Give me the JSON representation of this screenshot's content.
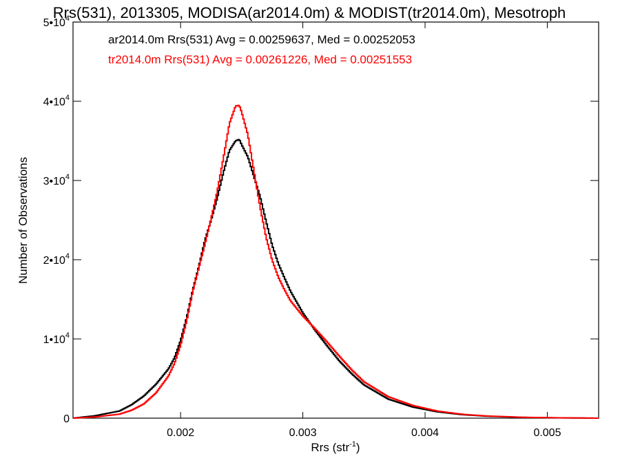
{
  "chart_data": {
    "type": "line",
    "title": "Rrs(531), 2013305, MODISA(ar2014.0m) & MODIST(tr2014.0m), Mesotroph",
    "xlabel": "Rrs (str",
    "xlabel_sup": "-1",
    "xlabel_end": ")",
    "ylabel": "Number of Observations",
    "xlim": [
      0.00112,
      0.00542
    ],
    "ylim": [
      0,
      50000
    ],
    "x_ticks": [
      {
        "value": 0.002,
        "label": "0.002"
      },
      {
        "value": 0.003,
        "label": "0.003"
      },
      {
        "value": 0.004,
        "label": "0.004"
      },
      {
        "value": 0.005,
        "label": "0.005"
      }
    ],
    "y_ticks": [
      {
        "value": 0,
        "mant": "0",
        "exp": ""
      },
      {
        "value": 10000,
        "mant": "1•10",
        "exp": "4"
      },
      {
        "value": 20000,
        "mant": "2•10",
        "exp": "4"
      },
      {
        "value": 30000,
        "mant": "3•10",
        "exp": "4"
      },
      {
        "value": 40000,
        "mant": "4•10",
        "exp": "4"
      },
      {
        "value": 50000,
        "mant": "5•10",
        "exp": "4"
      }
    ],
    "grid": false,
    "legend_position": "top-left",
    "series": [
      {
        "name": "ar2014.0m Rrs(531) Avg = 0.00259637, Med = 0.00252053",
        "color": "#000000",
        "x": [
          0.00112,
          0.0013,
          0.0015,
          0.0016,
          0.0017,
          0.0018,
          0.0019,
          0.00195,
          0.002,
          0.00205,
          0.0021,
          0.00215,
          0.0022,
          0.00225,
          0.0023,
          0.00235,
          0.0024,
          0.00245,
          0.00248,
          0.0025,
          0.00255,
          0.0026,
          0.00265,
          0.0027,
          0.00275,
          0.0028,
          0.00285,
          0.0029,
          0.003,
          0.0031,
          0.0032,
          0.0033,
          0.0034,
          0.0035,
          0.0037,
          0.0039,
          0.0041,
          0.0043,
          0.0045,
          0.0048,
          0.0051,
          0.00542
        ],
        "y": [
          0,
          300,
          900,
          1700,
          2800,
          4300,
          6200,
          7600,
          9800,
          12700,
          16200,
          19200,
          22500,
          25000,
          27800,
          31000,
          33800,
          35000,
          35200,
          34500,
          33000,
          30500,
          28000,
          24800,
          21800,
          19500,
          17700,
          16000,
          13300,
          11100,
          9100,
          7200,
          5600,
          4200,
          2400,
          1400,
          800,
          450,
          250,
          100,
          40,
          0
        ]
      },
      {
        "name": "tr2014.0m Rrs(531) Avg = 0.00261226, Med = 0.00251553",
        "color": "#ff0000",
        "x": [
          0.00112,
          0.0013,
          0.0015,
          0.0016,
          0.0017,
          0.0018,
          0.0019,
          0.00195,
          0.002,
          0.00205,
          0.0021,
          0.00215,
          0.0022,
          0.00225,
          0.0023,
          0.00235,
          0.0024,
          0.00245,
          0.00248,
          0.0025,
          0.00255,
          0.0026,
          0.00265,
          0.0027,
          0.00275,
          0.0028,
          0.00285,
          0.0029,
          0.003,
          0.0031,
          0.0032,
          0.0033,
          0.0034,
          0.0035,
          0.0037,
          0.0039,
          0.0041,
          0.0043,
          0.0045,
          0.0048,
          0.0051,
          0.00542
        ],
        "y": [
          0,
          150,
          500,
          1000,
          1800,
          3200,
          5300,
          6900,
          9200,
          12300,
          16000,
          19000,
          22000,
          25200,
          28600,
          32800,
          37200,
          39400,
          39500,
          38600,
          35800,
          31200,
          26700,
          22800,
          19900,
          17800,
          16200,
          14800,
          12900,
          11300,
          9600,
          7800,
          6100,
          4600,
          2700,
          1600,
          900,
          500,
          280,
          110,
          45,
          0
        ]
      }
    ]
  }
}
